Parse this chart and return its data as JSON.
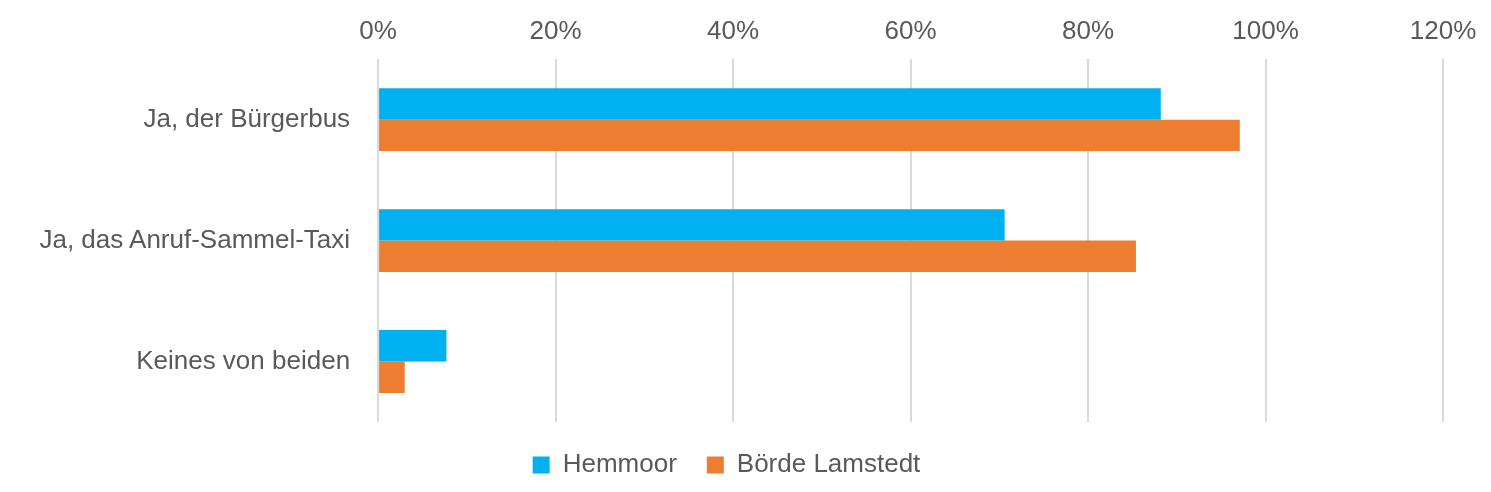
{
  "chart_data": {
    "type": "bar",
    "orientation": "horizontal",
    "categories": [
      "Ja, der Bürgerbus",
      "Ja, das Anruf-Sammel-Taxi",
      "Keines von beiden"
    ],
    "series": [
      {
        "name": "Hemmoor",
        "color": "#00b0f0",
        "values": [
          88.2,
          70.6,
          7.7
        ]
      },
      {
        "name": "Börde Lamstedt",
        "color": "#ed7d31",
        "values": [
          97.1,
          85.4,
          3.0
        ]
      }
    ],
    "xlim": [
      0,
      120
    ],
    "xticks": [
      {
        "value": 0,
        "label": "0%"
      },
      {
        "value": 20,
        "label": "20%"
      },
      {
        "value": 40,
        "label": "40%"
      },
      {
        "value": 60,
        "label": "60%"
      },
      {
        "value": 80,
        "label": "80%"
      },
      {
        "value": 100,
        "label": "100%"
      },
      {
        "value": 120,
        "label": "120%"
      }
    ],
    "grid": "x",
    "legend": "bottom"
  }
}
